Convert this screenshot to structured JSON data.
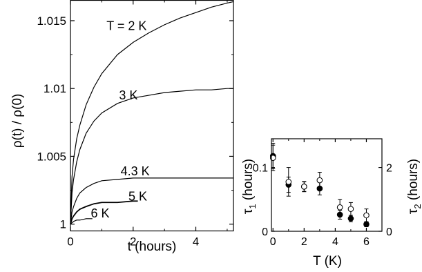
{
  "chart_data": [
    {
      "type": "line",
      "title": "",
      "xlabel": "t (hours)",
      "ylabel": "ρ(t) / ρ(0)",
      "xlim": [
        0,
        5.2
      ],
      "ylim": [
        0.9995,
        1.0165
      ],
      "xticks": [
        0,
        2,
        4
      ],
      "xtick_labels": [
        "0",
        "2",
        "4"
      ],
      "yticks": [
        1,
        1.005,
        1.01,
        1.015
      ],
      "ytick_labels": [
        "1",
        "1.005",
        "1.01",
        "1.015"
      ],
      "grid": false,
      "legend": "none",
      "series": [
        {
          "name": "T = 2 K",
          "x": [
            0,
            0.05,
            0.1,
            0.2,
            0.3,
            0.5,
            0.75,
            1.0,
            1.5,
            2.0,
            2.5,
            3.0,
            3.5,
            4.0,
            4.5,
            5.0,
            5.2
          ],
          "values": [
            1.0,
            1.0035,
            1.0048,
            1.0063,
            1.0073,
            1.0088,
            1.0101,
            1.0111,
            1.0125,
            1.0134,
            1.0141,
            1.0147,
            1.0152,
            1.0156,
            1.016,
            1.0163,
            1.0164
          ]
        },
        {
          "name": "3 K",
          "x": [
            0,
            0.05,
            0.1,
            0.2,
            0.3,
            0.5,
            0.75,
            1.0,
            1.5,
            2.0,
            2.5,
            3.0,
            3.5,
            4.0,
            4.5,
            5.0,
            5.2
          ],
          "values": [
            1.0,
            1.0023,
            1.0033,
            1.0046,
            1.0055,
            1.0067,
            1.0076,
            1.0082,
            1.0089,
            1.0093,
            1.0095,
            1.0097,
            1.0098,
            1.0099,
            1.0099,
            1.01,
            1.01
          ]
        },
        {
          "name": "4.3 K",
          "x": [
            0,
            0.05,
            0.1,
            0.2,
            0.3,
            0.5,
            0.75,
            1.0,
            1.5,
            2.0,
            2.5,
            3.0,
            4.0,
            5.0,
            5.2
          ],
          "values": [
            1.0,
            1.0009,
            1.0013,
            1.0019,
            1.0023,
            1.0027,
            1.003,
            1.0032,
            1.0033,
            1.0034,
            1.0034,
            1.0034,
            1.0034,
            1.0034,
            1.0034
          ]
        },
        {
          "name": "5 K",
          "x": [
            0,
            0.05,
            0.1,
            0.2,
            0.3,
            0.5,
            0.75,
            1.0,
            1.5,
            2.0,
            2.15
          ],
          "values": [
            1.0,
            1.0004,
            1.0006,
            1.0009,
            1.0011,
            1.0013,
            1.0015,
            1.0016,
            1.0016,
            1.0017,
            1.0017
          ]
        },
        {
          "name": "6 K",
          "x": [
            0,
            0.05,
            0.1,
            0.2,
            0.3,
            0.5,
            0.7
          ],
          "values": [
            1.0,
            1.0001,
            1.0002,
            1.0003,
            1.0003,
            1.0004,
            1.0004
          ]
        }
      ],
      "annotations": [
        "T = 2 K",
        "3 K",
        "4.3 K",
        "5 K",
        "6 K"
      ]
    },
    {
      "type": "scatter",
      "title": "",
      "xlabel": "T (K)",
      "ylabel": "τ1 (hours)",
      "y2label": "τ2 (hours)",
      "xlim": [
        -0.1,
        7
      ],
      "ylim": [
        0,
        0.145
      ],
      "y2lim": [
        0,
        2.9
      ],
      "xticks": [
        0,
        2,
        4,
        6
      ],
      "xtick_labels": [
        "0",
        "2",
        "4",
        "6"
      ],
      "yticks": [
        0,
        0.1
      ],
      "ytick_labels": [
        "0",
        "0.1"
      ],
      "y2ticks": [
        0,
        2
      ],
      "y2tick_labels": [
        "0",
        "2"
      ],
      "series": [
        {
          "name": "τ1",
          "marker": "filled-circle",
          "axis": "left",
          "x": [
            0,
            1,
            2,
            3,
            4.3,
            5,
            6
          ],
          "values": [
            0.118,
            0.073,
            0.07,
            0.067,
            0.026,
            0.02,
            0.011
          ],
          "errors": [
            0.02,
            0.012,
            0.008,
            0.01,
            0.007,
            0.005,
            0.004
          ]
        },
        {
          "name": "τ2",
          "marker": "open-circle",
          "axis": "right",
          "x": [
            0,
            1,
            2,
            3,
            4.3,
            5,
            6
          ],
          "values": [
            2.3,
            1.55,
            1.4,
            1.6,
            0.75,
            0.7,
            0.5
          ],
          "errors": [
            0.4,
            0.45,
            0.15,
            0.25,
            0.25,
            0.2,
            0.2
          ]
        }
      ]
    }
  ]
}
